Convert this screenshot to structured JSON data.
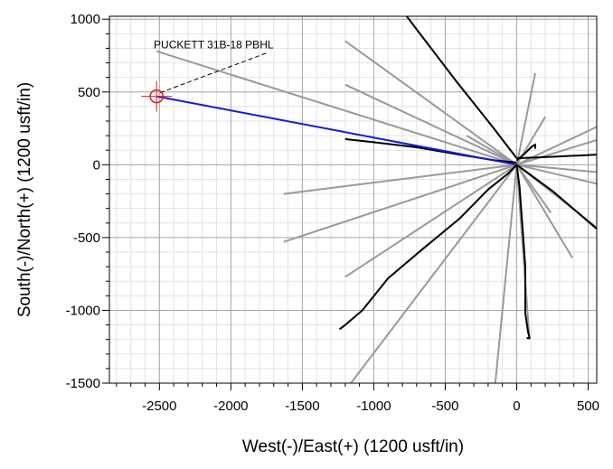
{
  "chart_data": {
    "type": "line",
    "xlabel": "West(-)/East(+) (1200 usft/in)",
    "ylabel": "South(-)/North(+) (1200 usft/in)",
    "xlim": [
      -2850,
      560
    ],
    "ylim": [
      -1500,
      1020
    ],
    "x_ticks": [
      -2500,
      -2000,
      -1500,
      -1000,
      -500,
      0,
      500
    ],
    "y_ticks": [
      1000,
      500,
      0,
      -500,
      -1000,
      -1500
    ],
    "x_tick_labels": [
      "-2500",
      "-2000",
      "-1500",
      "-1000",
      "-500",
      "0",
      "500"
    ],
    "y_tick_labels": [
      "1000",
      "500",
      "0",
      "-500",
      "-1000",
      "-1500"
    ],
    "grid": true,
    "target": {
      "name": "PUCKETT 31B-18 PBHL",
      "x": -2520,
      "y": 470,
      "label_x": -2350,
      "label_y": 830,
      "color": "#e0201c"
    },
    "series": [
      {
        "style": "planned",
        "color": "#0b1fd8",
        "points": [
          [
            0,
            0
          ],
          [
            -2520,
            470
          ]
        ]
      },
      {
        "style": "offset-actual",
        "color": "#000000",
        "lines": [
          [
            [
              -770,
              1020
            ],
            [
              -420,
              570
            ],
            [
              -160,
              250
            ],
            [
              0,
              45
            ]
          ],
          [
            [
              -1200,
              180
            ],
            [
              -1190,
              175
            ],
            [
              -1000,
              155
            ],
            [
              -700,
              120
            ],
            [
              -400,
              70
            ],
            [
              -150,
              30
            ],
            [
              0,
              15
            ]
          ],
          [
            [
              -1240,
              -1130
            ],
            [
              -1200,
              -1100
            ],
            [
              -1080,
              -1000
            ],
            [
              -900,
              -780
            ],
            [
              -660,
              -580
            ],
            [
              -400,
              -370
            ],
            [
              -200,
              -170
            ],
            [
              -60,
              -60
            ],
            [
              0,
              0
            ]
          ],
          [
            [
              0,
              0
            ],
            [
              20,
              -150
            ],
            [
              40,
              -420
            ],
            [
              60,
              -700
            ],
            [
              60,
              -1020
            ],
            [
              80,
              -1150
            ],
            [
              90,
              -1190
            ],
            [
              70,
              -1190
            ]
          ],
          [
            [
              0,
              30
            ],
            [
              60,
              80
            ],
            [
              100,
              120
            ],
            [
              130,
              140
            ],
            [
              130,
              110
            ]
          ],
          [
            [
              0,
              45
            ],
            [
              250,
              55
            ],
            [
              560,
              70
            ]
          ],
          [
            [
              0,
              0
            ],
            [
              250,
              -180
            ],
            [
              560,
              -440
            ]
          ]
        ]
      },
      {
        "style": "offset-plan",
        "color": "#999999",
        "lines": [
          [
            [
              -2520,
              780
            ],
            [
              0,
              0
            ]
          ],
          [
            [
              -1200,
              550
            ],
            [
              0,
              0
            ]
          ],
          [
            [
              -1200,
              -770
            ],
            [
              0,
              0
            ]
          ],
          [
            [
              -1630,
              -530
            ],
            [
              0,
              0
            ]
          ],
          [
            [
              -1630,
              -200
            ],
            [
              0,
              0
            ]
          ],
          [
            [
              -1160,
              -1500
            ],
            [
              0,
              0
            ]
          ],
          [
            [
              -150,
              -1500
            ],
            [
              0,
              0
            ]
          ],
          [
            [
              -350,
              200
            ],
            [
              0,
              0
            ]
          ],
          [
            [
              -1200,
              850
            ],
            [
              0,
              0
            ]
          ],
          [
            [
              130,
              630
            ],
            [
              0,
              0
            ]
          ],
          [
            [
              200,
              330
            ],
            [
              0,
              0
            ]
          ],
          [
            [
              560,
              170
            ],
            [
              0,
              0
            ]
          ],
          [
            [
              560,
              260
            ],
            [
              0,
              0
            ]
          ],
          [
            [
              560,
              -50
            ],
            [
              0,
              0
            ]
          ],
          [
            [
              560,
              -430
            ],
            [
              0,
              0
            ]
          ],
          [
            [
              390,
              -640
            ],
            [
              0,
              0
            ]
          ],
          [
            [
              560,
              -130
            ],
            [
              0,
              0
            ]
          ],
          [
            [
              240,
              -330
            ],
            [
              0,
              0
            ]
          ],
          [
            [
              90,
              -1200
            ],
            [
              0,
              0
            ]
          ]
        ]
      }
    ]
  }
}
